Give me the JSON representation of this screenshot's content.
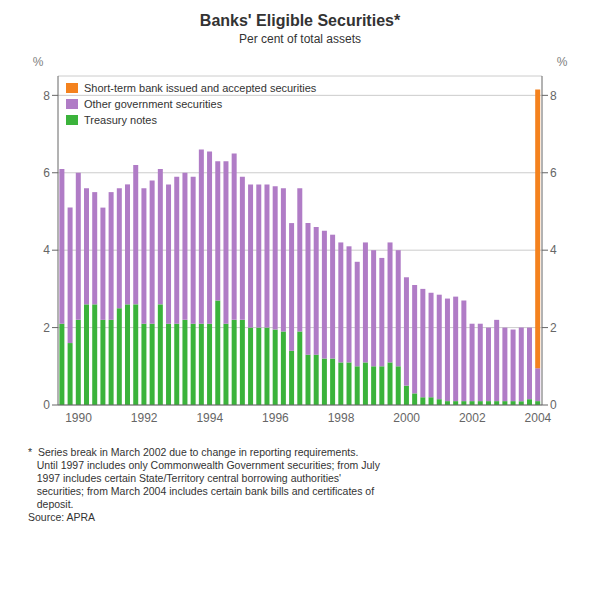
{
  "chart_data": {
    "type": "bar",
    "title": "Banks' Eligible Securities*",
    "subtitle": "Per cent of total assets",
    "ylabel": "%",
    "y2label": "%",
    "stacked": true,
    "grid": true,
    "legend": "upper left",
    "footnote": "*  Series break in March 2002 due to change in reporting requirements.\n   Until 1997 includes only Commonwealth Government securities; from July\n   1997 includes certain State/Territory central borrowing authorities'\n   securities; from March 2004 includes certain bank bills and certificates of\n   deposit.",
    "source": "Source: APRA",
    "ylim": [
      0,
      8.5
    ],
    "yticks": [
      0,
      2,
      4,
      6,
      8
    ],
    "y2lim": [
      0,
      8.5
    ],
    "y2ticks": [
      0,
      2,
      4,
      6,
      8
    ],
    "categories": [
      null,
      null,
      "1990",
      null,
      null,
      null,
      null,
      null,
      null,
      null,
      "1992",
      null,
      null,
      null,
      null,
      null,
      null,
      null,
      "1994",
      null,
      null,
      null,
      null,
      null,
      null,
      null,
      "1996",
      null,
      null,
      null,
      null,
      null,
      null,
      null,
      "1998",
      null,
      null,
      null,
      null,
      null,
      null,
      null,
      "2000",
      null,
      null,
      null,
      null,
      null,
      null,
      null,
      "2002",
      null,
      null,
      null,
      null,
      null,
      null,
      null,
      "2004"
    ],
    "series": [
      {
        "name": "Treasury notes",
        "color": "#3BB33B",
        "values": [
          2.1,
          1.6,
          2.2,
          2.6,
          2.6,
          2.2,
          2.2,
          2.5,
          2.6,
          2.6,
          2.1,
          2.1,
          2.6,
          2.1,
          2.1,
          2.2,
          2.1,
          2.1,
          2.1,
          2.7,
          2.1,
          2.2,
          2.2,
          2.0,
          2.0,
          2.0,
          1.95,
          1.9,
          1.4,
          1.9,
          1.3,
          1.3,
          1.2,
          1.2,
          1.1,
          1.1,
          1.0,
          1.1,
          1.0,
          1.0,
          1.1,
          1.0,
          0.5,
          0.3,
          0.2,
          0.2,
          0.15,
          0.1,
          0.1,
          0.1,
          0.1,
          0.1,
          0.1,
          0.1,
          0.1,
          0.1,
          0.1,
          0.15,
          0.1
        ]
      },
      {
        "name": "Other government securities",
        "color": "#B07CC6",
        "values": [
          4.0,
          3.5,
          3.8,
          3.0,
          2.9,
          2.9,
          3.3,
          3.1,
          3.1,
          3.6,
          3.5,
          3.7,
          3.5,
          3.6,
          3.8,
          3.8,
          3.8,
          4.5,
          4.45,
          3.6,
          4.2,
          4.3,
          3.7,
          3.7,
          3.7,
          3.7,
          3.7,
          3.7,
          3.3,
          3.7,
          3.4,
          3.3,
          3.3,
          3.2,
          3.1,
          3.0,
          2.7,
          3.1,
          3.0,
          2.8,
          3.1,
          3.0,
          2.8,
          2.8,
          2.8,
          2.7,
          2.7,
          2.65,
          2.7,
          2.6,
          2.0,
          2.0,
          1.9,
          2.1,
          1.9,
          1.85,
          1.9,
          1.85,
          0.85
        ]
      },
      {
        "name": "Short-term bank issued and accepted securities",
        "color": "#F4821E",
        "values": [
          0.0,
          0.0,
          0.0,
          0.0,
          0.0,
          0.0,
          0.0,
          0.0,
          0.0,
          0.0,
          0.0,
          0.0,
          0.0,
          0.0,
          0.0,
          0.0,
          0.0,
          0.0,
          0.0,
          0.0,
          0.0,
          0.0,
          0.0,
          0.0,
          0.0,
          0.0,
          0.0,
          0.0,
          0.0,
          0.0,
          0.0,
          0.0,
          0.0,
          0.0,
          0.0,
          0.0,
          0.0,
          0.0,
          0.0,
          0.0,
          0.0,
          0.0,
          0.0,
          0.0,
          0.0,
          0.0,
          0.0,
          0.0,
          0.0,
          0.0,
          0.0,
          0.0,
          0.0,
          0.0,
          0.0,
          0.0,
          0.0,
          0.0,
          7.2
        ]
      }
    ]
  }
}
